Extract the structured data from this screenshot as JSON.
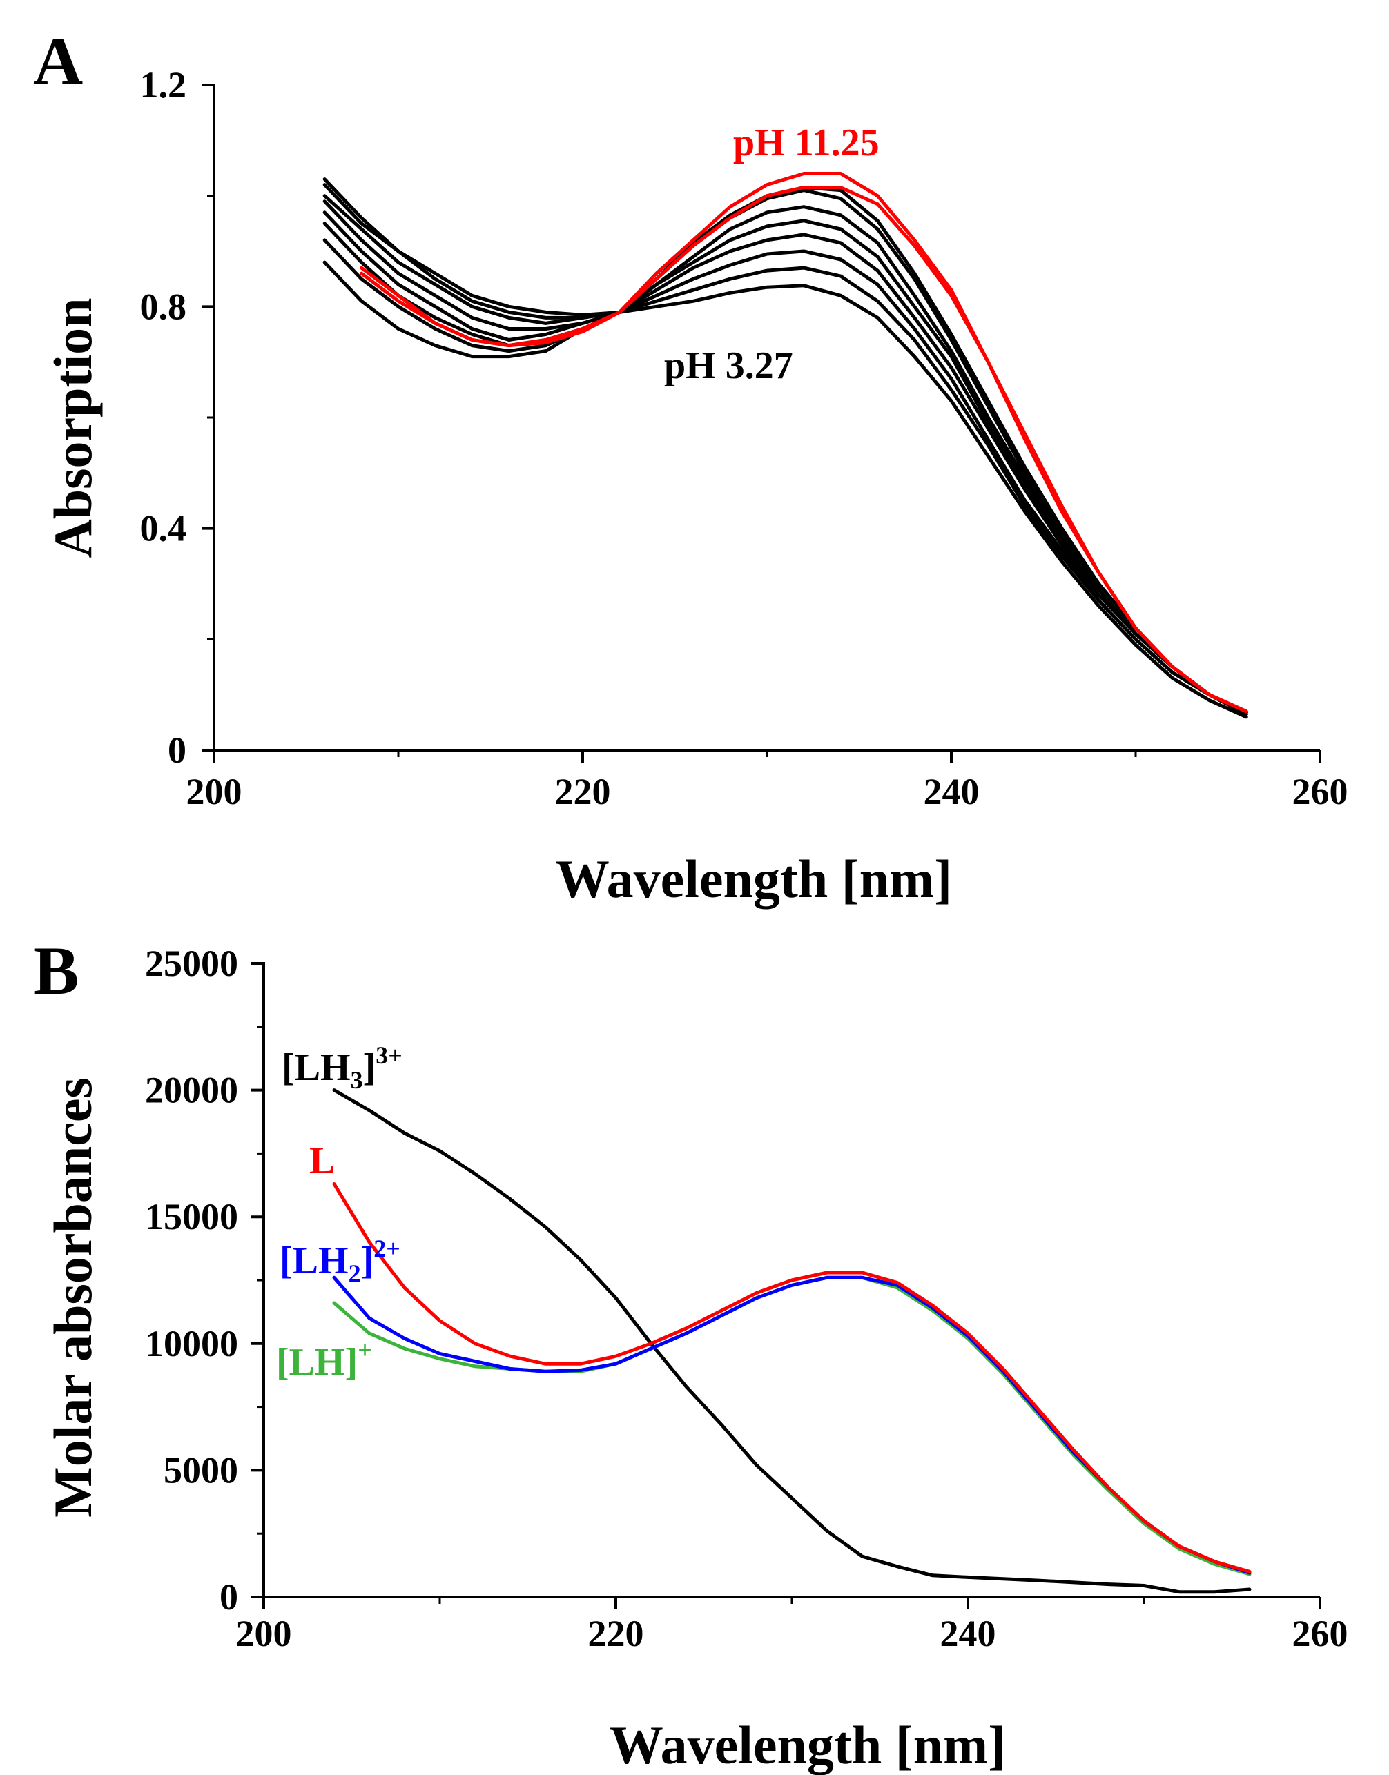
{
  "chart_data": [
    {
      "panel": "A",
      "type": "line",
      "xlabel": "Wavelength [nm]",
      "ylabel": "Absorption",
      "xlim": [
        200,
        260
      ],
      "ylim": [
        0,
        1.2
      ],
      "x_ticks": [
        "200",
        "220",
        "240",
        "260"
      ],
      "y_ticks": [
        "0",
        "0.4",
        "0.8",
        "1.2"
      ],
      "grid": false,
      "annotations": [
        {
          "text": "pH 11.25",
          "color": "#ff0000"
        },
        {
          "text": "pH 3.27",
          "color": "#000000"
        }
      ],
      "series": [
        {
          "color": "#000000",
          "x": [
            206,
            208,
            210,
            212,
            214,
            216,
            218,
            220,
            222,
            224,
            226,
            228,
            230,
            232,
            234,
            236,
            238,
            240,
            242,
            244,
            246,
            248,
            250,
            252,
            254,
            256
          ],
          "y": [
            0.88,
            0.81,
            0.76,
            0.73,
            0.71,
            0.71,
            0.72,
            0.76,
            0.79,
            0.8,
            0.81,
            0.825,
            0.835,
            0.838,
            0.82,
            0.78,
            0.71,
            0.63,
            0.53,
            0.43,
            0.34,
            0.26,
            0.19,
            0.13,
            0.09,
            0.06
          ]
        },
        {
          "color": "#000000",
          "x": [
            206,
            208,
            210,
            212,
            214,
            216,
            218,
            220,
            222,
            224,
            226,
            228,
            230,
            232,
            234,
            236,
            238,
            240,
            242,
            244,
            246,
            248,
            250,
            252,
            254,
            256
          ],
          "y": [
            0.92,
            0.85,
            0.8,
            0.76,
            0.73,
            0.72,
            0.73,
            0.76,
            0.79,
            0.81,
            0.83,
            0.85,
            0.865,
            0.87,
            0.855,
            0.81,
            0.74,
            0.65,
            0.55,
            0.44,
            0.35,
            0.27,
            0.2,
            0.14,
            0.1,
            0.065
          ]
        },
        {
          "color": "#000000",
          "x": [
            206,
            208,
            210,
            212,
            214,
            216,
            218,
            220,
            222,
            224,
            226,
            228,
            230,
            232,
            234,
            236,
            238,
            240,
            242,
            244,
            246,
            248,
            250,
            252,
            254,
            256
          ],
          "y": [
            0.95,
            0.88,
            0.82,
            0.78,
            0.75,
            0.73,
            0.74,
            0.76,
            0.79,
            0.82,
            0.85,
            0.875,
            0.895,
            0.9,
            0.885,
            0.84,
            0.76,
            0.67,
            0.56,
            0.45,
            0.36,
            0.27,
            0.2,
            0.14,
            0.1,
            0.065
          ]
        },
        {
          "color": "#000000",
          "x": [
            206,
            208,
            210,
            212,
            214,
            216,
            218,
            220,
            222,
            224,
            226,
            228,
            230,
            232,
            234,
            236,
            238,
            240,
            242,
            244,
            246,
            248,
            250,
            252,
            254,
            256
          ],
          "y": [
            0.97,
            0.9,
            0.84,
            0.8,
            0.76,
            0.74,
            0.75,
            0.77,
            0.79,
            0.83,
            0.87,
            0.9,
            0.92,
            0.93,
            0.915,
            0.865,
            0.78,
            0.69,
            0.58,
            0.47,
            0.37,
            0.28,
            0.21,
            0.15,
            0.1,
            0.068
          ]
        },
        {
          "color": "#000000",
          "x": [
            206,
            208,
            210,
            212,
            214,
            216,
            218,
            220,
            222,
            224,
            226,
            228,
            230,
            232,
            234,
            236,
            238,
            240,
            242,
            244,
            246,
            248,
            250,
            252,
            254,
            256
          ],
          "y": [
            0.99,
            0.92,
            0.86,
            0.82,
            0.78,
            0.76,
            0.76,
            0.77,
            0.79,
            0.84,
            0.88,
            0.92,
            0.945,
            0.955,
            0.94,
            0.89,
            0.8,
            0.71,
            0.59,
            0.48,
            0.38,
            0.29,
            0.21,
            0.15,
            0.1,
            0.068
          ]
        },
        {
          "color": "#000000",
          "x": [
            206,
            208,
            210,
            212,
            214,
            216,
            218,
            220,
            222,
            224,
            226,
            228,
            230,
            232,
            234,
            236,
            238,
            240,
            242,
            244,
            246,
            248,
            250,
            252,
            254,
            256
          ],
          "y": [
            1.0,
            0.94,
            0.88,
            0.84,
            0.8,
            0.78,
            0.77,
            0.78,
            0.79,
            0.84,
            0.89,
            0.94,
            0.97,
            0.98,
            0.965,
            0.915,
            0.82,
            0.72,
            0.6,
            0.49,
            0.38,
            0.29,
            0.21,
            0.15,
            0.1,
            0.068
          ]
        },
        {
          "color": "#000000",
          "x": [
            206,
            208,
            210,
            212,
            214,
            216,
            218,
            220,
            222,
            224,
            226,
            228,
            230,
            232,
            234,
            236,
            238,
            240,
            242,
            244,
            246,
            248,
            250,
            252,
            254,
            256
          ],
          "y": [
            1.02,
            0.95,
            0.9,
            0.85,
            0.81,
            0.79,
            0.78,
            0.78,
            0.79,
            0.85,
            0.91,
            0.96,
            0.995,
            1.01,
            0.995,
            0.94,
            0.85,
            0.74,
            0.62,
            0.5,
            0.39,
            0.3,
            0.22,
            0.15,
            0.1,
            0.068
          ]
        },
        {
          "color": "#000000",
          "x": [
            206,
            208,
            210,
            212,
            214,
            216,
            218,
            220,
            222,
            224,
            226,
            228,
            230,
            232,
            234,
            236,
            238,
            240,
            242,
            244,
            246,
            248,
            250,
            252,
            254,
            256
          ],
          "y": [
            1.03,
            0.96,
            0.9,
            0.86,
            0.82,
            0.8,
            0.79,
            0.785,
            0.79,
            0.85,
            0.915,
            0.965,
            1.0,
            1.015,
            1.01,
            0.955,
            0.86,
            0.75,
            0.63,
            0.51,
            0.4,
            0.3,
            0.22,
            0.15,
            0.1,
            0.07
          ]
        },
        {
          "color": "#ff0000",
          "x": [
            208,
            210,
            212,
            214,
            216,
            218,
            220,
            222,
            224,
            226,
            228,
            230,
            232,
            234,
            236,
            238,
            240,
            242,
            244,
            246,
            248,
            250,
            252,
            254,
            256
          ],
          "y": [
            0.87,
            0.82,
            0.77,
            0.74,
            0.73,
            0.74,
            0.76,
            0.79,
            0.86,
            0.92,
            0.98,
            1.02,
            1.04,
            1.04,
            1.0,
            0.92,
            0.83,
            0.7,
            0.57,
            0.44,
            0.32,
            0.22,
            0.15,
            0.1,
            0.07
          ]
        },
        {
          "color": "#ff0000",
          "x": [
            208,
            210,
            212,
            214,
            216,
            218,
            220,
            222,
            224,
            226,
            228,
            230,
            232,
            234,
            236,
            238,
            240,
            242,
            244,
            246,
            248,
            250,
            252,
            254,
            256
          ],
          "y": [
            0.86,
            0.81,
            0.77,
            0.74,
            0.73,
            0.735,
            0.755,
            0.79,
            0.85,
            0.91,
            0.96,
            1.0,
            1.015,
            1.015,
            0.985,
            0.91,
            0.82,
            0.7,
            0.56,
            0.43,
            0.32,
            0.22,
            0.15,
            0.1,
            0.07
          ]
        }
      ]
    },
    {
      "panel": "B",
      "type": "line",
      "xlabel": "Wavelength [nm]",
      "ylabel": "Molar absorbances",
      "xlim": [
        200,
        260
      ],
      "ylim": [
        0,
        25000
      ],
      "x_ticks": [
        "200",
        "220",
        "240",
        "260"
      ],
      "y_ticks": [
        "0",
        "5000",
        "10000",
        "15000",
        "20000",
        "25000"
      ],
      "grid": false,
      "series_labels": [
        {
          "text": "[LH",
          "sub": "3",
          "close": "]",
          "sup": "3+",
          "color": "#000000"
        },
        {
          "text": "L",
          "sub": "",
          "close": "",
          "sup": "",
          "color": "#ff0000"
        },
        {
          "text": "[LH",
          "sub": "2",
          "close": "]",
          "sup": "2+",
          "color": "#0000ff"
        },
        {
          "text": "[LH]",
          "sub": "",
          "close": "",
          "sup": "+",
          "color": "#3cb43c"
        }
      ],
      "series": [
        {
          "color": "#000000",
          "x": [
            204,
            206,
            208,
            210,
            212,
            214,
            216,
            218,
            220,
            222,
            224,
            226,
            228,
            230,
            232,
            234,
            236,
            238,
            240,
            244,
            248,
            250,
            252,
            254,
            256
          ],
          "y": [
            20000,
            19200,
            18300,
            17600,
            16700,
            15700,
            14600,
            13300,
            11800,
            10000,
            8300,
            6800,
            5200,
            3900,
            2600,
            1600,
            1200,
            850,
            780,
            650,
            500,
            450,
            200,
            200,
            300
          ]
        },
        {
          "color": "#3cb43c",
          "x": [
            204,
            206,
            208,
            210,
            212,
            214,
            216,
            218,
            220,
            222,
            224,
            226,
            228,
            230,
            232,
            234,
            236,
            238,
            240,
            242,
            244,
            246,
            248,
            250,
            252,
            254,
            256
          ],
          "y": [
            11600,
            10400,
            9800,
            9400,
            9100,
            9000,
            8900,
            8900,
            9200,
            9800,
            10400,
            11100,
            11800,
            12300,
            12600,
            12600,
            12200,
            11300,
            10200,
            8800,
            7200,
            5600,
            4200,
            2900,
            1900,
            1300,
            900
          ]
        },
        {
          "color": "#0000ff",
          "x": [
            204,
            206,
            208,
            210,
            212,
            214,
            216,
            218,
            220,
            222,
            224,
            226,
            228,
            230,
            232,
            234,
            236,
            238,
            240,
            242,
            244,
            246,
            248,
            250,
            252,
            254,
            256
          ],
          "y": [
            12600,
            11000,
            10200,
            9600,
            9300,
            9000,
            8900,
            8950,
            9200,
            9800,
            10400,
            11100,
            11800,
            12300,
            12600,
            12600,
            12300,
            11400,
            10300,
            8900,
            7300,
            5700,
            4300,
            3000,
            2000,
            1400,
            950
          ]
        },
        {
          "color": "#ff0000",
          "x": [
            204,
            206,
            208,
            210,
            212,
            214,
            216,
            218,
            220,
            222,
            224,
            226,
            228,
            230,
            232,
            234,
            236,
            238,
            240,
            242,
            244,
            246,
            248,
            250,
            252,
            254,
            256
          ],
          "y": [
            16300,
            14000,
            12200,
            10900,
            10000,
            9500,
            9200,
            9200,
            9500,
            10000,
            10600,
            11300,
            12000,
            12500,
            12800,
            12800,
            12400,
            11500,
            10400,
            9000,
            7400,
            5800,
            4300,
            3000,
            2000,
            1400,
            1000
          ]
        }
      ]
    }
  ]
}
